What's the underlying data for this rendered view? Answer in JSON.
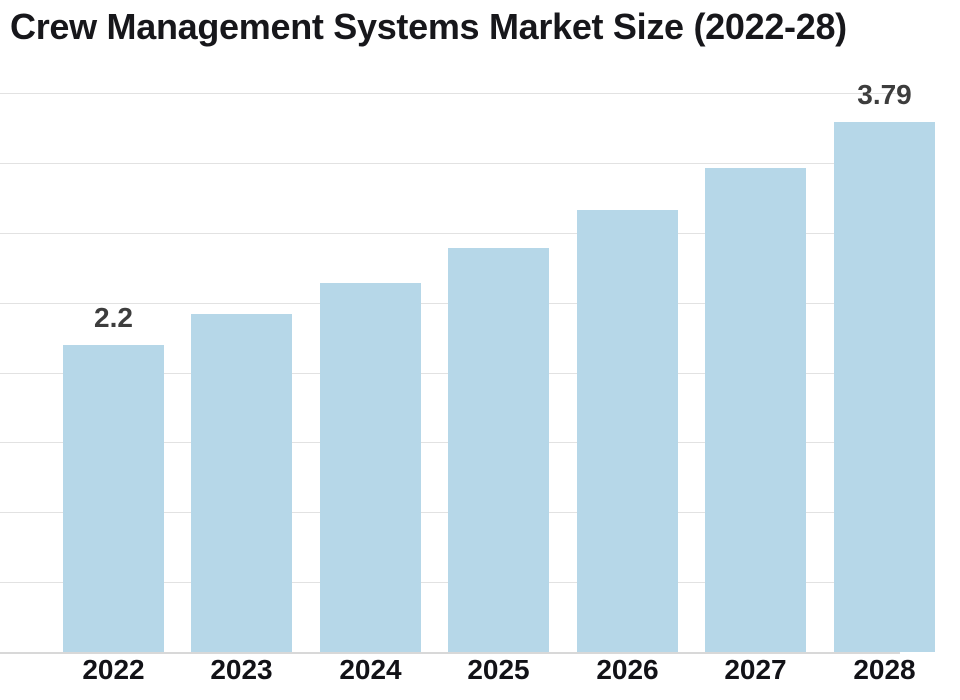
{
  "chart_data": {
    "type": "bar",
    "title": "Crew Management Systems Market Size (2022-28)",
    "categories": [
      "2022",
      "2023",
      "2024",
      "2025",
      "2026",
      "2027",
      "2028"
    ],
    "values": [
      2.2,
      2.42,
      2.64,
      2.89,
      3.16,
      3.46,
      3.79
    ],
    "bar_labels": [
      "2.2",
      "",
      "",
      "",
      "",
      "",
      "3.79"
    ],
    "xlabel": "",
    "ylabel": "",
    "ylim": [
      0,
      4
    ],
    "grid_step": 0.5,
    "grid": "horizontal",
    "legend": "none"
  },
  "colors": {
    "bar": "#b6d7e8",
    "gridline": "#e2e2e2",
    "axis_line": "#d8d8d8",
    "title_text": "#17171b",
    "tick_label": "#121217",
    "value_label": "#3d3d3d",
    "background": "#ffffff"
  }
}
